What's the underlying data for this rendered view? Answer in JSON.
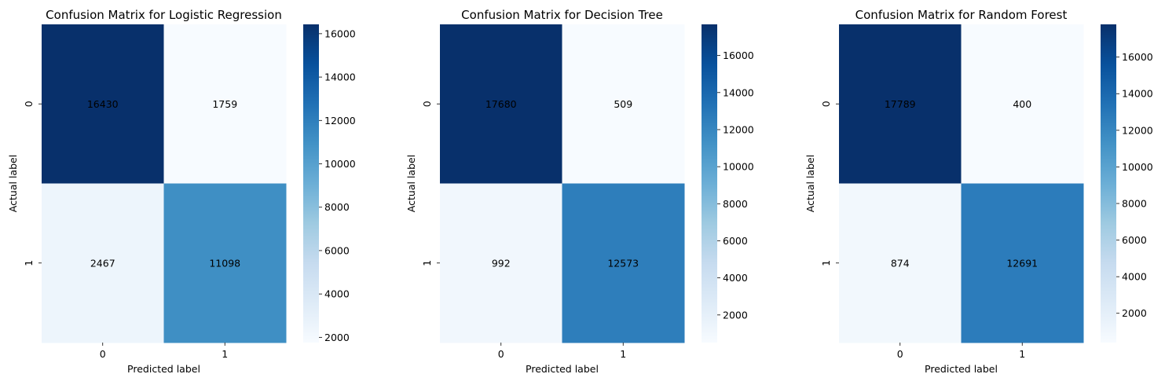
{
  "chart_data": [
    {
      "type": "heatmap",
      "title": "Confusion Matrix for Logistic Regression",
      "xlabel": "Predicted label",
      "ylabel": "Actual label",
      "x_categories": [
        "0",
        "1"
      ],
      "y_categories": [
        "0",
        "1"
      ],
      "values": [
        [
          16430,
          1759
        ],
        [
          2467,
          11098
        ]
      ],
      "colormap": "Blues",
      "colorbar_range": [
        1759,
        16430
      ],
      "colorbar_ticks": [
        2000,
        4000,
        6000,
        8000,
        10000,
        12000,
        14000,
        16000
      ]
    },
    {
      "type": "heatmap",
      "title": "Confusion Matrix for Decision Tree",
      "xlabel": "Predicted label",
      "ylabel": "Actual label",
      "x_categories": [
        "0",
        "1"
      ],
      "y_categories": [
        "0",
        "1"
      ],
      "values": [
        [
          17680,
          509
        ],
        [
          992,
          12573
        ]
      ],
      "colormap": "Blues",
      "colorbar_range": [
        509,
        17680
      ],
      "colorbar_ticks": [
        2000,
        4000,
        6000,
        8000,
        10000,
        12000,
        14000,
        16000
      ]
    },
    {
      "type": "heatmap",
      "title": "Confusion Matrix for Random Forest",
      "xlabel": "Predicted label",
      "ylabel": "Actual label",
      "x_categories": [
        "0",
        "1"
      ],
      "y_categories": [
        "0",
        "1"
      ],
      "values": [
        [
          17789,
          400
        ],
        [
          874,
          12691
        ]
      ],
      "colormap": "Blues",
      "colorbar_range": [
        400,
        17789
      ],
      "colorbar_ticks": [
        2000,
        4000,
        6000,
        8000,
        10000,
        12000,
        14000,
        16000
      ]
    }
  ]
}
